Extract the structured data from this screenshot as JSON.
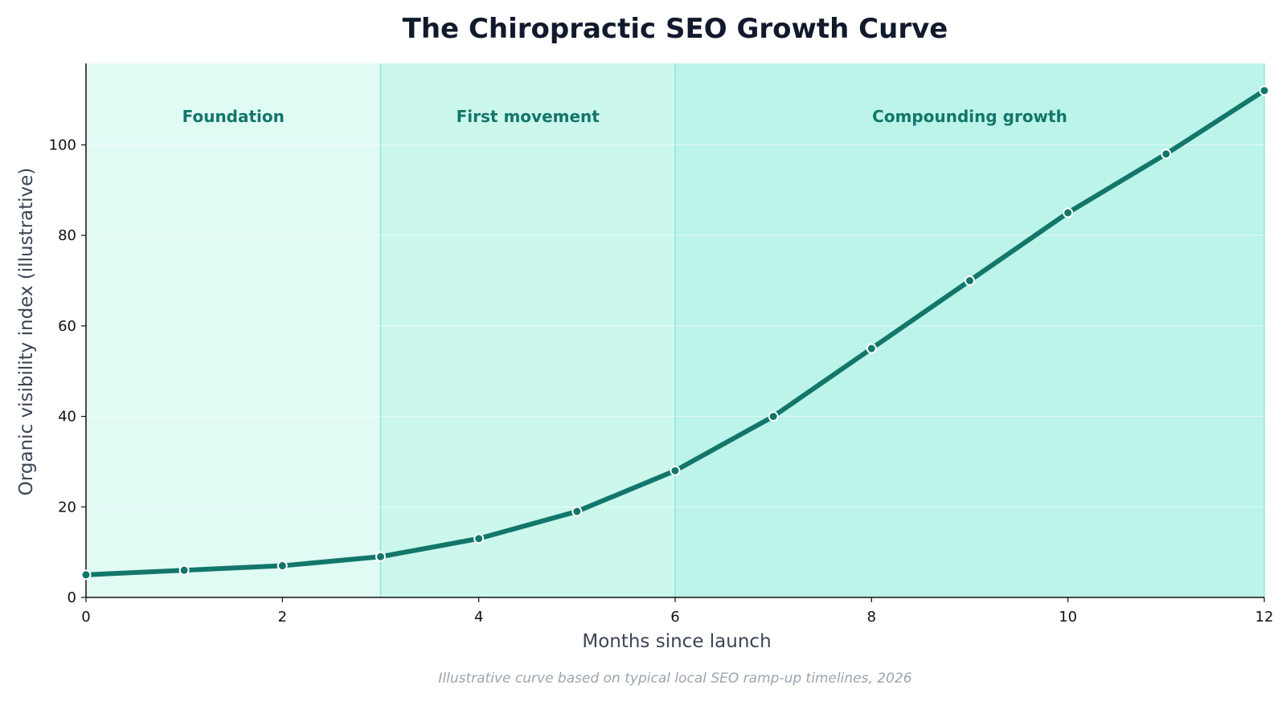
{
  "chart_data": {
    "type": "line",
    "title": "The Chiropractic SEO Growth Curve",
    "xlabel": "Months since launch",
    "ylabel": "Organic visibility index (illustrative)",
    "caption": "Illustrative curve based on typical local SEO ramp-up timelines, 2026",
    "xlim": [
      0,
      12
    ],
    "ylim": [
      0,
      118
    ],
    "x_ticks": [
      0,
      2,
      4,
      6,
      8,
      10,
      12
    ],
    "y_ticks": [
      0,
      20,
      40,
      60,
      80,
      100
    ],
    "grid": "horizontal",
    "x": [
      0,
      1,
      2,
      3,
      4,
      5,
      6,
      7,
      8,
      9,
      10,
      11,
      12
    ],
    "series": [
      {
        "values": [
          5,
          6,
          7,
          9,
          13,
          19,
          28,
          40,
          55,
          70,
          85,
          98,
          112
        ]
      }
    ],
    "phases": [
      {
        "label": "Foundation",
        "start": 0,
        "end": 3,
        "color": "#e0faf4"
      },
      {
        "label": "First movement",
        "start": 3,
        "end": 6,
        "color": "#cbf7ec"
      },
      {
        "label": "Compounding growth",
        "start": 6,
        "end": 12,
        "color": "#bcf4e9"
      }
    ],
    "colors": {
      "line": "#13766a",
      "phase_border": "#8ee8d6",
      "marker_edge": "#ffffff"
    }
  }
}
